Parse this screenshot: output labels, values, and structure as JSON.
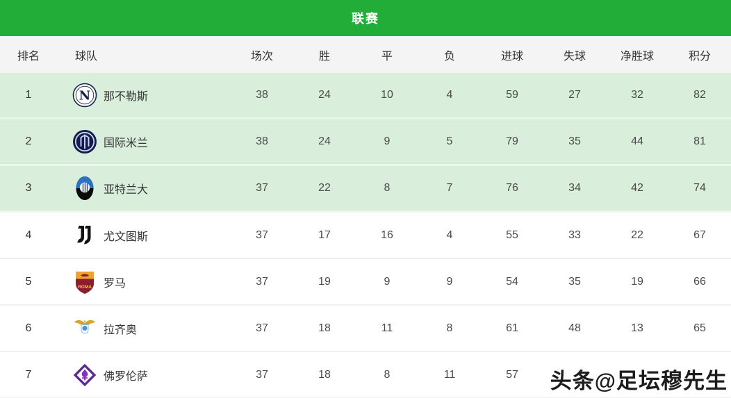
{
  "banner": {
    "title": "联赛"
  },
  "table": {
    "columns": [
      "排名",
      "球队",
      "场次",
      "胜",
      "平",
      "负",
      "进球",
      "失球",
      "净胜球",
      "积分"
    ],
    "rows": [
      {
        "rank": "1",
        "team": "那不勒斯",
        "logo": "napoli-crest",
        "highlight": true,
        "stats": [
          "38",
          "24",
          "10",
          "4",
          "59",
          "27",
          "32",
          "82"
        ]
      },
      {
        "rank": "2",
        "team": "国际米兰",
        "logo": "inter-crest",
        "highlight": true,
        "stats": [
          "38",
          "24",
          "9",
          "5",
          "79",
          "35",
          "44",
          "81"
        ]
      },
      {
        "rank": "3",
        "team": "亚特兰大",
        "logo": "atalanta-crest",
        "highlight": true,
        "stats": [
          "37",
          "22",
          "8",
          "7",
          "76",
          "34",
          "42",
          "74"
        ]
      },
      {
        "rank": "4",
        "team": "尤文图斯",
        "logo": "juventus-crest",
        "highlight": false,
        "stats": [
          "37",
          "17",
          "16",
          "4",
          "55",
          "33",
          "22",
          "67"
        ]
      },
      {
        "rank": "5",
        "team": "罗马",
        "logo": "roma-crest",
        "highlight": false,
        "stats": [
          "37",
          "19",
          "9",
          "9",
          "54",
          "35",
          "19",
          "66"
        ]
      },
      {
        "rank": "6",
        "team": "拉齐奥",
        "logo": "lazio-crest",
        "highlight": false,
        "stats": [
          "37",
          "18",
          "11",
          "8",
          "61",
          "48",
          "13",
          "65"
        ]
      },
      {
        "rank": "7",
        "team": "佛罗伦萨",
        "logo": "fiorentina-crest",
        "highlight": false,
        "stats": [
          "37",
          "18",
          "8",
          "11",
          "57",
          "",
          "",
          ""
        ]
      }
    ]
  },
  "watermark": {
    "text": "头条@足坛穆先生"
  },
  "colors": {
    "banner_green": "#22ac38",
    "highlight_row_green": "#d9eedb",
    "header_gray": "#f4f4f4"
  }
}
